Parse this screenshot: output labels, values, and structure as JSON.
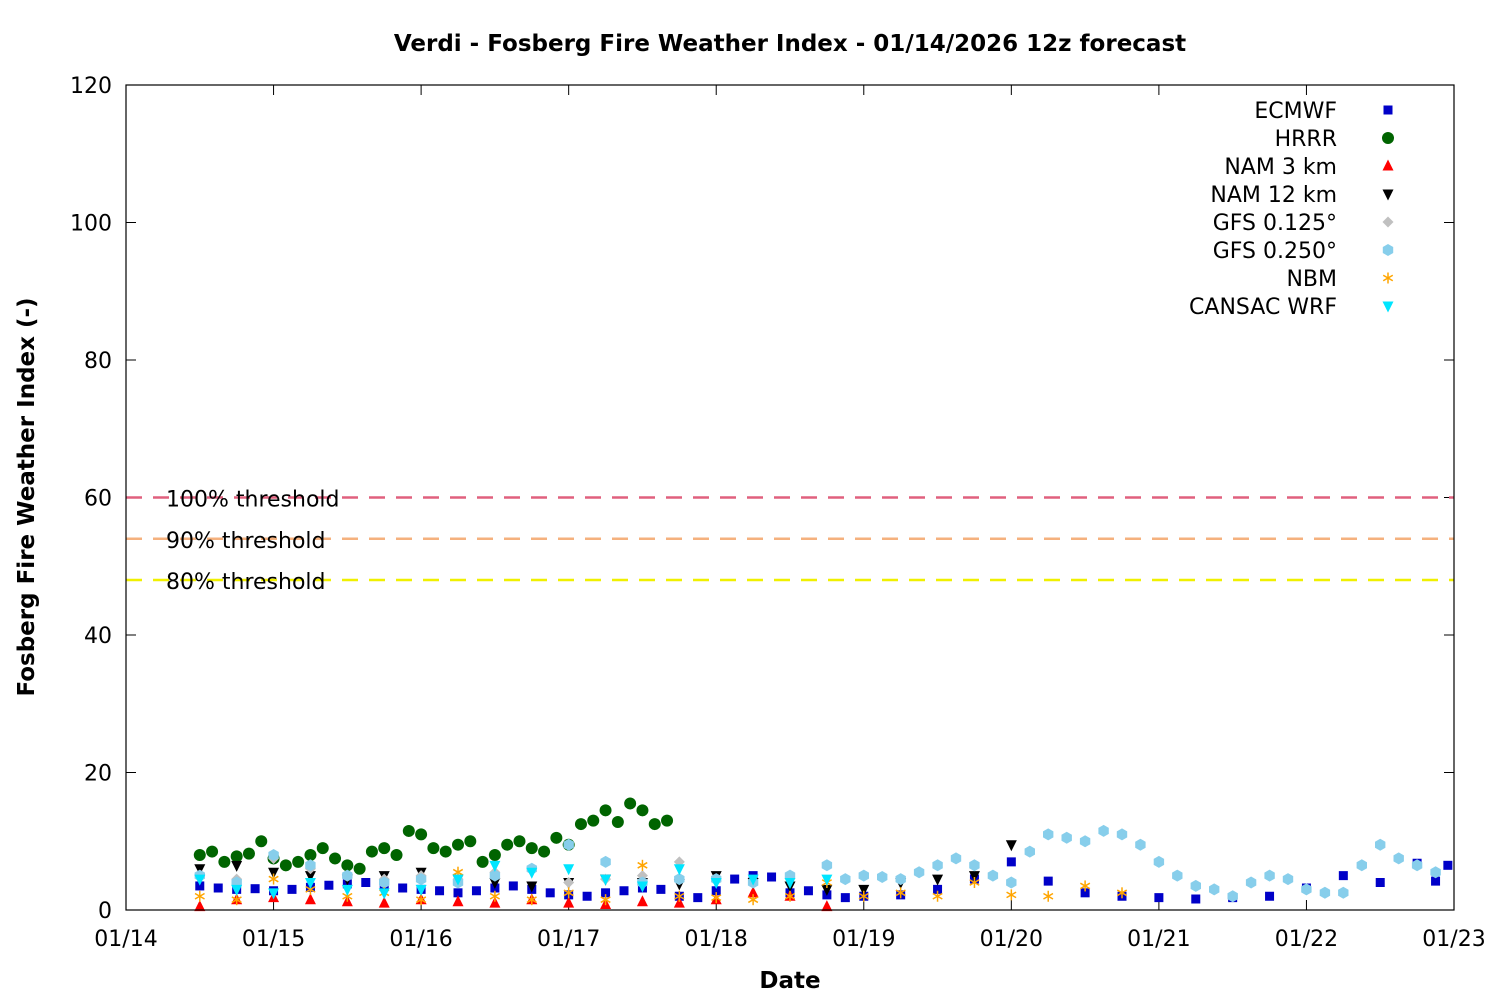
{
  "chart_data": {
    "type": "scatter",
    "title": "Verdi - Fosberg Fire Weather Index - 01/14/2026 12z forecast",
    "xlabel": "Date",
    "ylabel": "Fosberg Fire Weather Index (-)",
    "ylim": [
      0,
      120
    ],
    "yticks": [
      "0",
      "20",
      "40",
      "60",
      "80",
      "100",
      "120"
    ],
    "xlim": [
      "2026-01-14T00",
      "2026-01-23T00"
    ],
    "xticks": [
      "01/14",
      "01/15",
      "01/16",
      "01/17",
      "01/18",
      "01/19",
      "01/20",
      "01/21",
      "01/22",
      "01/23"
    ],
    "grid": false,
    "legend_position": "top-right",
    "thresholds": [
      {
        "label": "100% threshold",
        "value": 60,
        "color": "#e0607e"
      },
      {
        "label": "90% threshold",
        "value": 54,
        "color": "#f5b17e"
      },
      {
        "label": "80% threshold",
        "value": 48,
        "color": "#f0f000"
      }
    ],
    "series": [
      {
        "name": "ECMWF",
        "color": "#0000c8",
        "marker": "square",
        "points": [
          [
            "2026-01-14T12",
            3.5
          ],
          [
            "2026-01-14T15",
            3.2
          ],
          [
            "2026-01-14T18",
            3.0
          ],
          [
            "2026-01-14T21",
            3.1
          ],
          [
            "2026-01-15T00",
            2.8
          ],
          [
            "2026-01-15T03",
            3.0
          ],
          [
            "2026-01-15T06",
            3.3
          ],
          [
            "2026-01-15T09",
            3.6
          ],
          [
            "2026-01-15T12",
            3.8
          ],
          [
            "2026-01-15T15",
            4.0
          ],
          [
            "2026-01-15T18",
            3.5
          ],
          [
            "2026-01-15T21",
            3.2
          ],
          [
            "2026-01-16T00",
            3.0
          ],
          [
            "2026-01-16T03",
            2.8
          ],
          [
            "2026-01-16T06",
            2.5
          ],
          [
            "2026-01-16T09",
            2.8
          ],
          [
            "2026-01-16T12",
            3.2
          ],
          [
            "2026-01-16T15",
            3.5
          ],
          [
            "2026-01-16T18",
            3.0
          ],
          [
            "2026-01-16T21",
            2.5
          ],
          [
            "2026-01-17T00",
            2.2
          ],
          [
            "2026-01-17T03",
            2.0
          ],
          [
            "2026-01-17T06",
            2.5
          ],
          [
            "2026-01-17T09",
            2.8
          ],
          [
            "2026-01-17T12",
            3.2
          ],
          [
            "2026-01-17T15",
            3.0
          ],
          [
            "2026-01-17T18",
            2.0
          ],
          [
            "2026-01-17T21",
            1.8
          ],
          [
            "2026-01-18T00",
            2.8
          ],
          [
            "2026-01-18T03",
            4.5
          ],
          [
            "2026-01-18T06",
            5.0
          ],
          [
            "2026-01-18T09",
            4.8
          ],
          [
            "2026-01-18T12",
            2.5
          ],
          [
            "2026-01-18T15",
            2.8
          ],
          [
            "2026-01-18T18",
            2.2
          ],
          [
            "2026-01-18T21",
            1.8
          ],
          [
            "2026-01-19T00",
            2.0
          ],
          [
            "2026-01-19T06",
            2.2
          ],
          [
            "2026-01-19T12",
            3.0
          ],
          [
            "2026-01-19T18",
            4.5
          ],
          [
            "2026-01-20T00",
            7.0
          ],
          [
            "2026-01-20T06",
            4.2
          ],
          [
            "2026-01-20T12",
            2.5
          ],
          [
            "2026-01-20T18",
            2.0
          ],
          [
            "2026-01-21T00",
            1.8
          ],
          [
            "2026-01-21T06",
            1.6
          ],
          [
            "2026-01-21T12",
            1.8
          ],
          [
            "2026-01-21T18",
            2.0
          ],
          [
            "2026-01-22T00",
            3.2
          ],
          [
            "2026-01-22T06",
            5.0
          ],
          [
            "2026-01-22T12",
            4.0
          ],
          [
            "2026-01-22T18",
            6.8
          ],
          [
            "2026-01-22T21",
            4.2
          ],
          [
            "2026-01-22T23",
            6.5
          ]
        ]
      },
      {
        "name": "HRRR",
        "color": "#006400",
        "marker": "circle",
        "points": [
          [
            "2026-01-14T12",
            8.0
          ],
          [
            "2026-01-14T14",
            8.5
          ],
          [
            "2026-01-14T16",
            7.0
          ],
          [
            "2026-01-14T18",
            7.8
          ],
          [
            "2026-01-14T20",
            8.2
          ],
          [
            "2026-01-14T22",
            10.0
          ],
          [
            "2026-01-15T00",
            7.5
          ],
          [
            "2026-01-15T02",
            6.5
          ],
          [
            "2026-01-15T04",
            7.0
          ],
          [
            "2026-01-15T06",
            8.0
          ],
          [
            "2026-01-15T08",
            9.0
          ],
          [
            "2026-01-15T10",
            7.5
          ],
          [
            "2026-01-15T12",
            6.5
          ],
          [
            "2026-01-15T14",
            6.0
          ],
          [
            "2026-01-15T16",
            8.5
          ],
          [
            "2026-01-15T18",
            9.0
          ],
          [
            "2026-01-15T20",
            8.0
          ],
          [
            "2026-01-15T22",
            11.5
          ],
          [
            "2026-01-16T00",
            11.0
          ],
          [
            "2026-01-16T02",
            9.0
          ],
          [
            "2026-01-16T04",
            8.5
          ],
          [
            "2026-01-16T06",
            9.5
          ],
          [
            "2026-01-16T08",
            10.0
          ],
          [
            "2026-01-16T10",
            7.0
          ],
          [
            "2026-01-16T12",
            8.0
          ],
          [
            "2026-01-16T14",
            9.5
          ],
          [
            "2026-01-16T16",
            10.0
          ],
          [
            "2026-01-16T18",
            9.0
          ],
          [
            "2026-01-16T20",
            8.5
          ],
          [
            "2026-01-16T22",
            10.5
          ],
          [
            "2026-01-17T00",
            9.5
          ],
          [
            "2026-01-17T02",
            12.5
          ],
          [
            "2026-01-17T04",
            13.0
          ],
          [
            "2026-01-17T06",
            14.5
          ],
          [
            "2026-01-17T08",
            12.8
          ],
          [
            "2026-01-17T10",
            15.5
          ],
          [
            "2026-01-17T12",
            14.5
          ],
          [
            "2026-01-17T14",
            12.5
          ],
          [
            "2026-01-17T16",
            13.0
          ]
        ]
      },
      {
        "name": "NAM 3 km",
        "color": "#ff0000",
        "marker": "triangle-up",
        "points": [
          [
            "2026-01-14T12",
            0.5
          ],
          [
            "2026-01-14T18",
            1.5
          ],
          [
            "2026-01-15T00",
            1.8
          ],
          [
            "2026-01-15T06",
            1.5
          ],
          [
            "2026-01-15T12",
            1.2
          ],
          [
            "2026-01-15T18",
            1.0
          ],
          [
            "2026-01-16T00",
            1.5
          ],
          [
            "2026-01-16T06",
            1.2
          ],
          [
            "2026-01-16T12",
            1.0
          ],
          [
            "2026-01-16T18",
            1.5
          ],
          [
            "2026-01-17T00",
            1.0
          ],
          [
            "2026-01-17T06",
            0.8
          ],
          [
            "2026-01-17T12",
            1.2
          ],
          [
            "2026-01-17T18",
            1.0
          ],
          [
            "2026-01-18T00",
            1.5
          ],
          [
            "2026-01-18T06",
            2.5
          ],
          [
            "2026-01-18T12",
            2.0
          ],
          [
            "2026-01-18T18",
            0.5
          ]
        ]
      },
      {
        "name": "NAM 12 km",
        "color": "#000000",
        "marker": "triangle-down",
        "points": [
          [
            "2026-01-14T12",
            6.0
          ],
          [
            "2026-01-14T18",
            6.5
          ],
          [
            "2026-01-15T00",
            5.5
          ],
          [
            "2026-01-15T06",
            5.0
          ],
          [
            "2026-01-15T12",
            4.5
          ],
          [
            "2026-01-15T18",
            5.0
          ],
          [
            "2026-01-16T00",
            5.5
          ],
          [
            "2026-01-16T06",
            4.5
          ],
          [
            "2026-01-16T12",
            4.0
          ],
          [
            "2026-01-16T18",
            3.5
          ],
          [
            "2026-01-17T00",
            4.0
          ],
          [
            "2026-01-17T06",
            4.5
          ],
          [
            "2026-01-17T12",
            4.0
          ],
          [
            "2026-01-17T18",
            3.8
          ],
          [
            "2026-01-18T00",
            5.0
          ],
          [
            "2026-01-18T06",
            4.0
          ],
          [
            "2026-01-18T12",
            3.5
          ],
          [
            "2026-01-18T18",
            3.0
          ],
          [
            "2026-01-19T00",
            3.0
          ],
          [
            "2026-01-19T06",
            4.0
          ],
          [
            "2026-01-19T12",
            4.5
          ],
          [
            "2026-01-19T18",
            5.0
          ],
          [
            "2026-01-20T00",
            9.5
          ]
        ]
      },
      {
        "name": "GFS 0.125°",
        "color": "#c0c0c0",
        "marker": "diamond",
        "points": [
          [
            "2026-01-14T12",
            5.0
          ],
          [
            "2026-01-14T18",
            4.5
          ],
          [
            "2026-01-15T00",
            7.5
          ],
          [
            "2026-01-15T06",
            6.0
          ],
          [
            "2026-01-15T12",
            5.0
          ],
          [
            "2026-01-15T18",
            4.5
          ],
          [
            "2026-01-16T00",
            5.0
          ],
          [
            "2026-01-16T06",
            4.5
          ],
          [
            "2026-01-16T12",
            5.5
          ],
          [
            "2026-01-16T18",
            6.0
          ],
          [
            "2026-01-17T00",
            4.0
          ],
          [
            "2026-01-17T06",
            4.5
          ],
          [
            "2026-01-17T12",
            5.0
          ],
          [
            "2026-01-17T18",
            7.0
          ]
        ]
      },
      {
        "name": "GFS 0.250°",
        "color": "#87ceeb",
        "marker": "hexagon",
        "points": [
          [
            "2026-01-14T12",
            5.0
          ],
          [
            "2026-01-14T18",
            4.0
          ],
          [
            "2026-01-15T00",
            8.0
          ],
          [
            "2026-01-15T06",
            6.5
          ],
          [
            "2026-01-15T12",
            5.0
          ],
          [
            "2026-01-15T18",
            4.0
          ],
          [
            "2026-01-16T00",
            4.5
          ],
          [
            "2026-01-16T06",
            4.0
          ],
          [
            "2026-01-16T12",
            5.0
          ],
          [
            "2026-01-16T18",
            6.0
          ],
          [
            "2026-01-17T00",
            9.5
          ],
          [
            "2026-01-17T06",
            7.0
          ],
          [
            "2026-01-17T12",
            4.0
          ],
          [
            "2026-01-17T18",
            4.5
          ],
          [
            "2026-01-18T00",
            4.5
          ],
          [
            "2026-01-18T06",
            4.0
          ],
          [
            "2026-01-18T12",
            5.0
          ],
          [
            "2026-01-18T18",
            6.5
          ],
          [
            "2026-01-18T21",
            4.5
          ],
          [
            "2026-01-19T00",
            5.0
          ],
          [
            "2026-01-19T03",
            4.8
          ],
          [
            "2026-01-19T06",
            4.5
          ],
          [
            "2026-01-19T09",
            5.5
          ],
          [
            "2026-01-19T12",
            6.5
          ],
          [
            "2026-01-19T15",
            7.5
          ],
          [
            "2026-01-19T18",
            6.5
          ],
          [
            "2026-01-19T21",
            5.0
          ],
          [
            "2026-01-20T00",
            4.0
          ],
          [
            "2026-01-20T03",
            8.5
          ],
          [
            "2026-01-20T06",
            11.0
          ],
          [
            "2026-01-20T09",
            10.5
          ],
          [
            "2026-01-20T12",
            10.0
          ],
          [
            "2026-01-20T15",
            11.5
          ],
          [
            "2026-01-20T18",
            11.0
          ],
          [
            "2026-01-20T21",
            9.5
          ],
          [
            "2026-01-21T00",
            7.0
          ],
          [
            "2026-01-21T03",
            5.0
          ],
          [
            "2026-01-21T06",
            3.5
          ],
          [
            "2026-01-21T09",
            3.0
          ],
          [
            "2026-01-21T12",
            2.0
          ],
          [
            "2026-01-21T15",
            4.0
          ],
          [
            "2026-01-21T18",
            5.0
          ],
          [
            "2026-01-21T21",
            4.5
          ],
          [
            "2026-01-22T00",
            3.0
          ],
          [
            "2026-01-22T03",
            2.5
          ],
          [
            "2026-01-22T06",
            2.5
          ],
          [
            "2026-01-22T09",
            6.5
          ],
          [
            "2026-01-22T12",
            9.5
          ],
          [
            "2026-01-22T15",
            7.5
          ],
          [
            "2026-01-22T18",
            6.5
          ],
          [
            "2026-01-22T21",
            5.5
          ]
        ]
      },
      {
        "name": "NBM",
        "color": "#ffa500",
        "marker": "asterisk",
        "points": [
          [
            "2026-01-14T12",
            2.0
          ],
          [
            "2026-01-14T18",
            1.5
          ],
          [
            "2026-01-15T00",
            4.5
          ],
          [
            "2026-01-15T06",
            3.0
          ],
          [
            "2026-01-15T12",
            2.0
          ],
          [
            "2026-01-15T18",
            2.5
          ],
          [
            "2026-01-16T00",
            1.5
          ],
          [
            "2026-01-16T06",
            5.5
          ],
          [
            "2026-01-16T12",
            2.0
          ],
          [
            "2026-01-16T18",
            1.5
          ],
          [
            "2026-01-17T00",
            2.5
          ],
          [
            "2026-01-17T06",
            1.5
          ],
          [
            "2026-01-17T12",
            6.5
          ],
          [
            "2026-01-17T18",
            2.0
          ],
          [
            "2026-01-18T00",
            1.8
          ],
          [
            "2026-01-18T06",
            1.5
          ],
          [
            "2026-01-18T12",
            2.0
          ],
          [
            "2026-01-18T18",
            4.0
          ],
          [
            "2026-01-19T00",
            2.0
          ],
          [
            "2026-01-19T06",
            2.5
          ],
          [
            "2026-01-19T12",
            2.0
          ],
          [
            "2026-01-19T18",
            4.0
          ],
          [
            "2026-01-20T00",
            2.2
          ],
          [
            "2026-01-20T06",
            2.0
          ],
          [
            "2026-01-20T12",
            3.5
          ],
          [
            "2026-01-20T18",
            2.5
          ]
        ]
      },
      {
        "name": "CANSAC WRF",
        "color": "#00e5ff",
        "marker": "triangle-down",
        "points": [
          [
            "2026-01-14T12",
            4.5
          ],
          [
            "2026-01-14T18",
            3.0
          ],
          [
            "2026-01-15T00",
            2.5
          ],
          [
            "2026-01-15T06",
            4.0
          ],
          [
            "2026-01-15T12",
            3.0
          ],
          [
            "2026-01-15T18",
            2.5
          ],
          [
            "2026-01-16T00",
            3.0
          ],
          [
            "2026-01-16T06",
            4.5
          ],
          [
            "2026-01-16T12",
            6.5
          ],
          [
            "2026-01-16T18",
            5.5
          ],
          [
            "2026-01-17T00",
            6.0
          ],
          [
            "2026-01-17T06",
            4.5
          ],
          [
            "2026-01-17T12",
            3.5
          ],
          [
            "2026-01-17T18",
            6.0
          ],
          [
            "2026-01-18T00",
            4.0
          ],
          [
            "2026-01-18T06",
            4.5
          ],
          [
            "2026-01-18T12",
            4.0
          ],
          [
            "2026-01-18T18",
            4.5
          ]
        ]
      }
    ]
  }
}
